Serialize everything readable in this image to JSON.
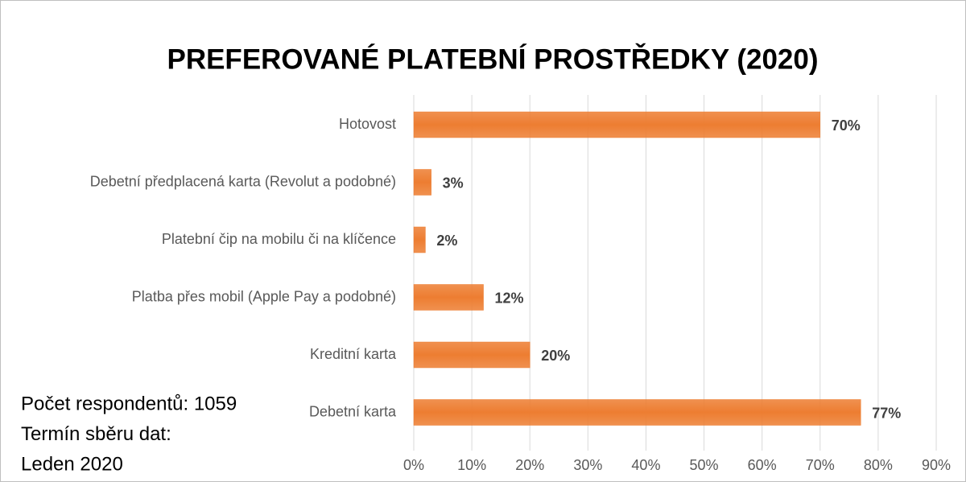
{
  "chart_data": {
    "type": "bar",
    "orientation": "horizontal",
    "title": "PREFEROVANÉ PLATEBNÍ PROSTŘEDKY (2020)",
    "categories": [
      "Hotovost",
      "Debetní předplacená karta (Revolut a podobné)",
      "Platební čip na mobilu či na klíčence",
      "Platba přes mobil (Apple Pay a podobné)",
      "Kreditní karta",
      "Debetní karta"
    ],
    "values": [
      70,
      3,
      2,
      12,
      20,
      77
    ],
    "value_labels": [
      "70%",
      "3%",
      "2%",
      "12%",
      "20%",
      "77%"
    ],
    "color": "#ed7d31",
    "xlim": [
      0,
      90
    ],
    "xticks": [
      {
        "value": 0,
        "label": "0%"
      },
      {
        "value": 10,
        "label": "10%"
      },
      {
        "value": 20,
        "label": "20%"
      },
      {
        "value": 30,
        "label": "30%"
      },
      {
        "value": 40,
        "label": "40%"
      },
      {
        "value": 50,
        "label": "50%"
      },
      {
        "value": 60,
        "label": "60%"
      },
      {
        "value": 70,
        "label": "70%"
      },
      {
        "value": 80,
        "label": "80%"
      },
      {
        "value": 90,
        "label": "90%"
      }
    ],
    "grid": true,
    "annotations": [
      "Počet respondentů: 1059",
      "Termín sběru dat:",
      "Leden 2020"
    ]
  }
}
